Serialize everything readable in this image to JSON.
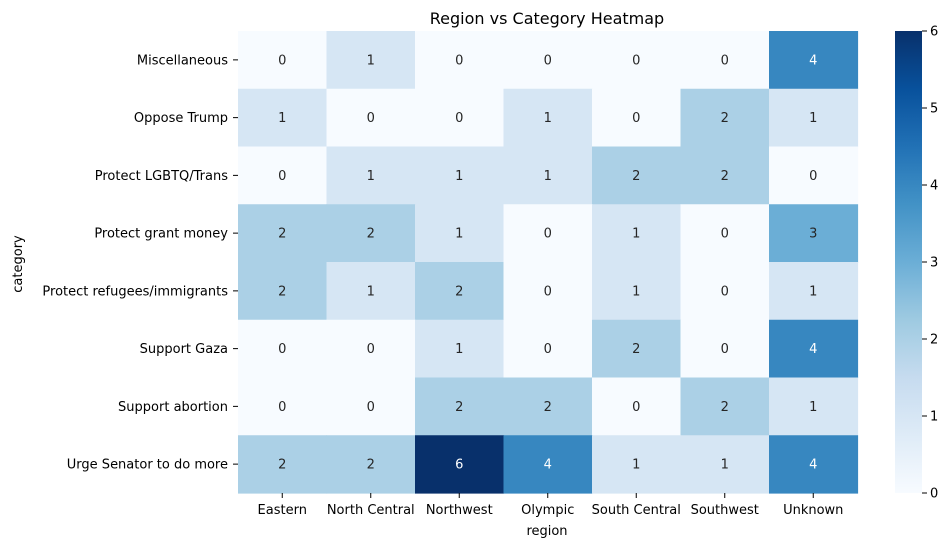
{
  "chart_data": {
    "type": "heatmap",
    "title": "Region vs Category Heatmap",
    "xlabel": "region",
    "ylabel": "category",
    "x_categories": [
      "Eastern",
      "North Central",
      "Northwest",
      "Olympic",
      "South Central",
      "Southwest",
      "Unknown"
    ],
    "y_categories": [
      "Miscellaneous",
      "Oppose Trump",
      "Protect LGBTQ/Trans",
      "Protect grant money",
      "Protect refugees/immigrants",
      "Support Gaza",
      "Support abortion",
      "Urge Senator to do more"
    ],
    "values": [
      [
        0,
        1,
        0,
        0,
        0,
        0,
        4
      ],
      [
        1,
        0,
        0,
        1,
        0,
        2,
        1
      ],
      [
        0,
        1,
        1,
        1,
        2,
        2,
        0
      ],
      [
        2,
        2,
        1,
        0,
        1,
        0,
        3
      ],
      [
        2,
        1,
        2,
        0,
        1,
        0,
        1
      ],
      [
        0,
        0,
        1,
        0,
        2,
        0,
        4
      ],
      [
        0,
        0,
        2,
        2,
        0,
        2,
        1
      ],
      [
        2,
        2,
        6,
        4,
        1,
        1,
        4
      ]
    ],
    "color_scale": {
      "name": "Blues",
      "min": 0,
      "max": 6,
      "low_color": "#f7fbff",
      "high_color": "#08306b"
    },
    "colorbar_ticks": [
      0,
      1,
      2,
      3,
      4,
      5,
      6
    ],
    "annotations": true
  }
}
